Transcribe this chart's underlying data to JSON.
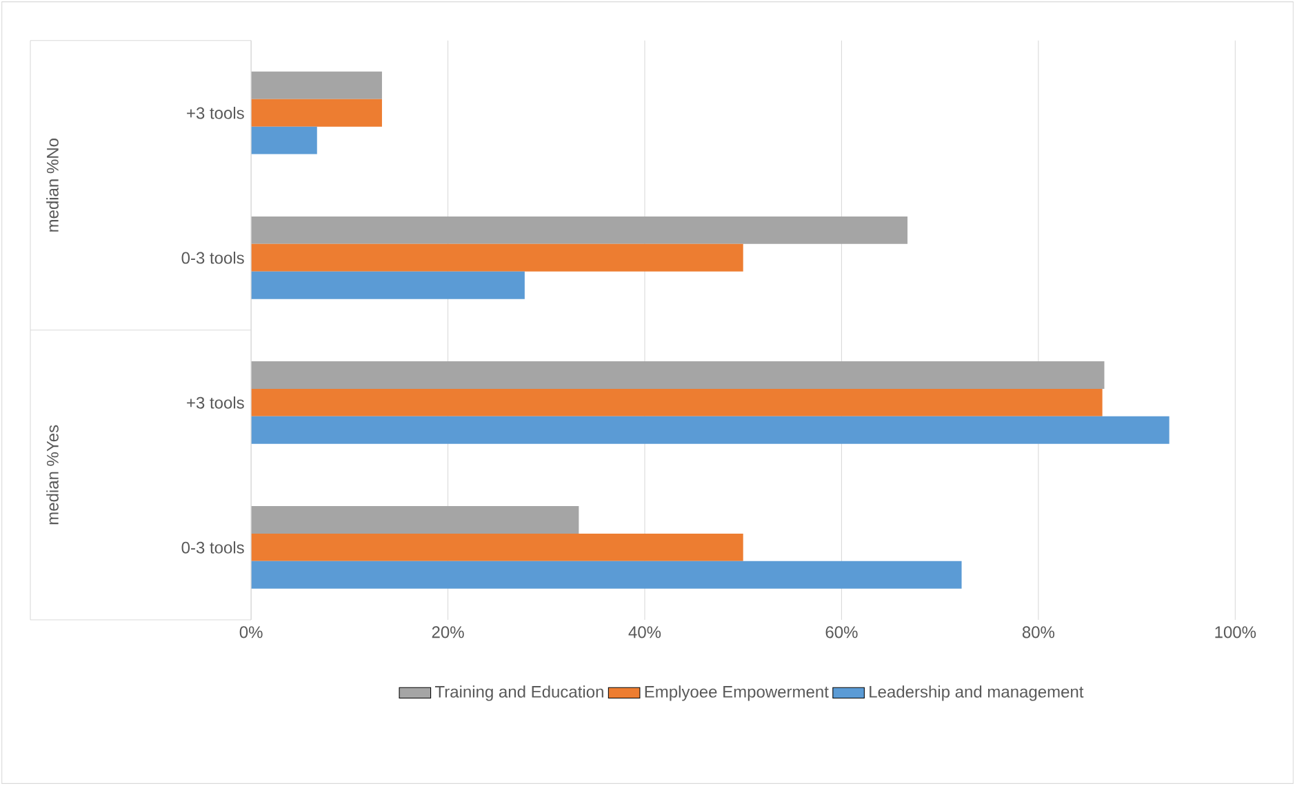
{
  "chart_data": {
    "type": "bar",
    "orientation": "horizontal",
    "categories": [
      "+3 tools",
      "0-3 tools",
      "+3 tools",
      "0-3 tools"
    ],
    "series": [
      {
        "name": "Training and Education",
        "color": "#a5a5a5",
        "values": [
          13.3,
          66.7,
          86.7,
          33.3
        ]
      },
      {
        "name": "Emplyoee Empowerment",
        "color": "#ed7d31",
        "values": [
          13.3,
          50,
          86.5,
          50
        ]
      },
      {
        "name": "Leadership and management",
        "color": "#5b9bd5",
        "values": [
          6.7,
          27.8,
          93.3,
          72.2
        ]
      }
    ],
    "annotations": [
      "median %No",
      "median %Yes"
    ],
    "xlim": [
      0,
      100
    ],
    "xticks": [
      {
        "value": 0,
        "label": "0%"
      },
      {
        "value": 20,
        "label": "20%"
      },
      {
        "value": 40,
        "label": "40%"
      },
      {
        "value": 60,
        "label": "60%"
      },
      {
        "value": 80,
        "label": "80%"
      },
      {
        "value": 100,
        "label": "100%"
      }
    ],
    "grid": "x",
    "legend": "bottom"
  }
}
